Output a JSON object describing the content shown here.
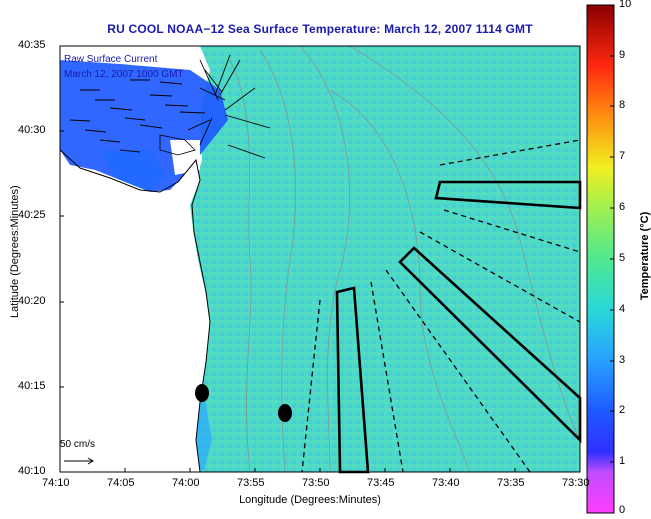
{
  "title": "RU COOL  NOAA−12  Sea Surface Temperature:  March 12, 2007 1114 GMT",
  "xlabel": "Longitude (Degrees:Minutes)",
  "ylabel": "Latitude (Degrees:Minutes)",
  "legend": {
    "line1": "Raw Surface Current",
    "line2": "March 12, 2007 1000 GMT"
  },
  "scale_label": "50 cm/s",
  "x_ticks": [
    "74:10",
    "74:05",
    "74:00",
    "73:55",
    "73:50",
    "73:45",
    "73:40",
    "73:35",
    "73:30"
  ],
  "y_ticks": [
    "40:35",
    "40:30",
    "40:25",
    "40:20",
    "40:15",
    "40:10"
  ],
  "colorbar": {
    "label": "Temperature (°C)",
    "ticks": [
      "10",
      "9",
      "8",
      "7",
      "6",
      "5",
      "4",
      "3",
      "2",
      "1",
      "0"
    ],
    "range": [
      0,
      10
    ]
  },
  "colors": {
    "land": "#ffffff",
    "water_sst": "#4ed8c8",
    "cold_nearshore": "#1e5aff",
    "outline": "#000000"
  }
}
